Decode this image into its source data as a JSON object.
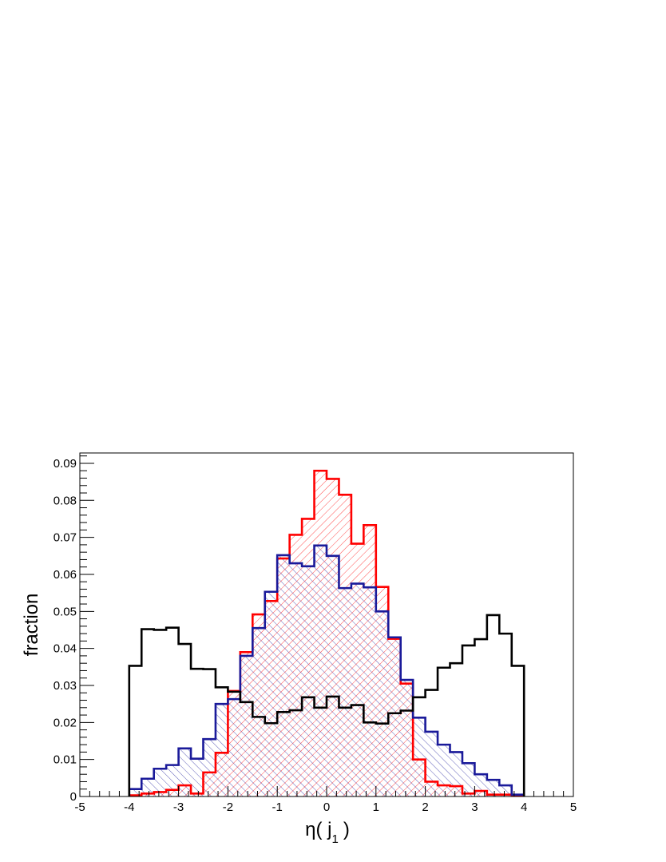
{
  "chart_data": {
    "type": "histogram",
    "xlabel": {
      "main": "η( j",
      "sub": "1",
      "end": ")"
    },
    "ylabel": "fraction",
    "bins": [
      -4,
      -3.75,
      -3.5,
      -3.25,
      -3,
      -2.75,
      -2.5,
      -2.25,
      -2,
      -1.75,
      -1.5,
      -1.25,
      -1,
      -0.75,
      -0.5,
      -0.25,
      0,
      0.25,
      0.5,
      0.75,
      1,
      1.25,
      1.5,
      1.75,
      2,
      2.25,
      2.5,
      2.75,
      3,
      3.25,
      3.5,
      3.75,
      4
    ],
    "series": [
      {
        "color": "#000000",
        "hatch": "none",
        "values": [
          0.0353,
          0.0452,
          0.045,
          0.0456,
          0.0412,
          0.0345,
          0.0344,
          0.0295,
          0.0283,
          0.0255,
          0.0215,
          0.0198,
          0.0228,
          0.0233,
          0.0268,
          0.024,
          0.027,
          0.024,
          0.0247,
          0.02,
          0.0197,
          0.0225,
          0.0232,
          0.0268,
          0.0288,
          0.0348,
          0.036,
          0.0408,
          0.0425,
          0.049,
          0.044,
          0.0353
        ]
      },
      {
        "color": "#1a1a9a",
        "hatch": "backslash",
        "values": [
          0.002,
          0.0048,
          0.0075,
          0.0085,
          0.013,
          0.0102,
          0.0155,
          0.025,
          0.0263,
          0.038,
          0.0455,
          0.0553,
          0.0652,
          0.063,
          0.0622,
          0.0678,
          0.065,
          0.0563,
          0.0575,
          0.0565,
          0.05,
          0.043,
          0.0315,
          0.0213,
          0.0175,
          0.014,
          0.012,
          0.009,
          0.006,
          0.0045,
          0.003,
          0.0005
        ]
      },
      {
        "color": "#ff0000",
        "hatch": "slash",
        "values": [
          0.0003,
          0.0008,
          0.0012,
          0.0018,
          0.003,
          0.0008,
          0.0065,
          0.0118,
          0.0285,
          0.039,
          0.0492,
          0.0528,
          0.0643,
          0.0707,
          0.075,
          0.088,
          0.0858,
          0.0815,
          0.0683,
          0.0733,
          0.0566,
          0.0426,
          0.0305,
          0.01,
          0.004,
          0.003,
          0.0028,
          0.0008,
          0.0015,
          0.0005,
          0.0005,
          0.0003
        ]
      }
    ],
    "xlim": [
      -5,
      5
    ],
    "xticks": [
      -5,
      -4,
      -3,
      -2,
      -1,
      0,
      1,
      2,
      3,
      4,
      5
    ],
    "ylim": [
      0,
      0.0928
    ],
    "yticks": [
      0,
      0.01,
      0.02,
      0.03,
      0.04,
      0.05,
      0.06,
      0.07,
      0.08,
      0.09
    ]
  }
}
